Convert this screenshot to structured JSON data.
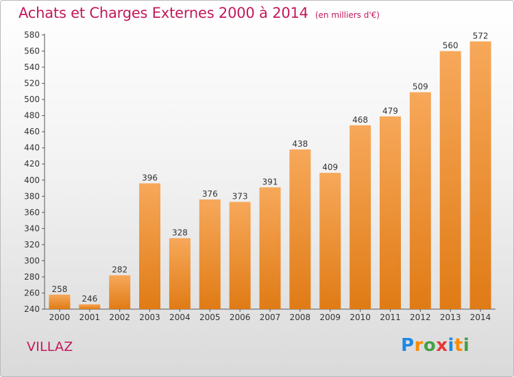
{
  "header": {
    "title": "Achats et Charges Externes 2000 à 2014",
    "unit": "(en milliers d'€)"
  },
  "footer": {
    "commune": "VILLAZ",
    "logo_letters": [
      "P",
      "r",
      "o",
      "x",
      "i",
      "t",
      "i"
    ],
    "logo_colors": [
      "#1e88e5",
      "#fb8c00",
      "#43a047",
      "#e53935",
      "#1e88e5",
      "#fb8c00",
      "#43a047"
    ]
  },
  "chart_data": {
    "type": "bar",
    "title": "Achats et Charges Externes 2000 à 2014",
    "subtitle": "(en milliers d'€)",
    "categories": [
      "2000",
      "2001",
      "2002",
      "2003",
      "2004",
      "2005",
      "2006",
      "2007",
      "2008",
      "2009",
      "2010",
      "2011",
      "2012",
      "2013",
      "2014"
    ],
    "values": [
      258,
      246,
      282,
      396,
      328,
      376,
      373,
      391,
      438,
      409,
      468,
      479,
      509,
      560,
      572
    ],
    "ylim": [
      240,
      580
    ],
    "yticks": [
      240,
      260,
      280,
      300,
      320,
      340,
      360,
      380,
      400,
      420,
      440,
      460,
      480,
      500,
      520,
      540,
      560,
      580
    ],
    "grid": false,
    "data_labels": true,
    "bar_color_top": "#f7a85a",
    "bar_color_bottom": "#e07b15"
  }
}
